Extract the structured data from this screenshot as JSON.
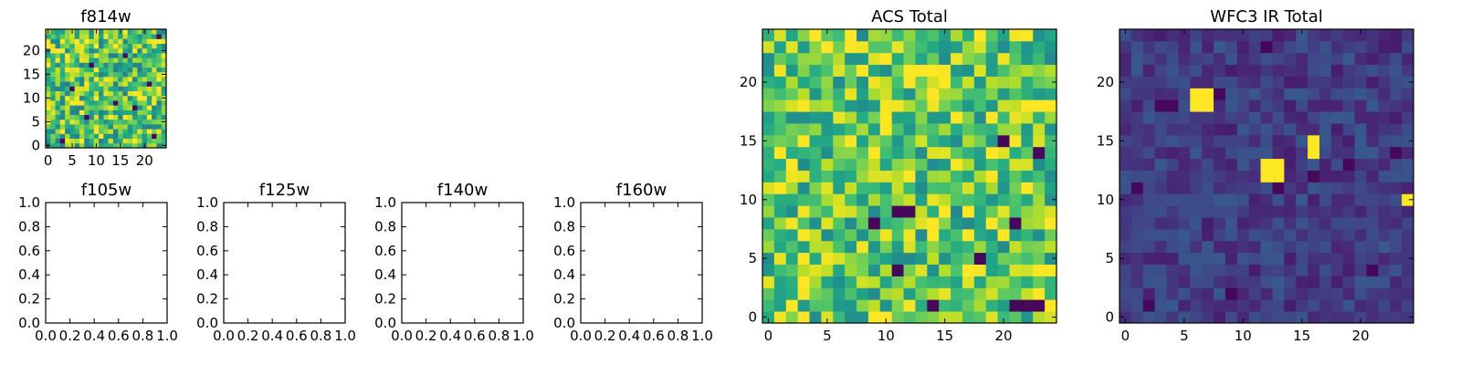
{
  "chart_data": [
    {
      "type": "heatmap",
      "title": "f814w",
      "grid": false,
      "size": 25,
      "colormap": "viridis",
      "extent": [
        -0.5,
        24.5,
        -0.5,
        24.5
      ],
      "xticks": [
        0,
        5,
        10,
        15,
        20
      ],
      "yticks": [
        0,
        5,
        10,
        15,
        20
      ],
      "seed": 11,
      "base": 0.72,
      "noise": 0.3,
      "dark_pixels": [
        [
          3,
          1
        ],
        [
          22,
          2
        ],
        [
          8,
          6
        ],
        [
          14,
          9
        ],
        [
          18,
          8
        ],
        [
          21,
          13
        ],
        [
          9,
          17
        ],
        [
          23,
          23
        ],
        [
          16,
          19
        ],
        [
          5,
          12
        ]
      ],
      "bright_pixels": [],
      "value_range": [
        0,
        1
      ]
    },
    {
      "type": "scatter",
      "title": "f105w",
      "grid": false,
      "empty": true,
      "xlim": [
        0.0,
        1.0
      ],
      "ylim": [
        0.0,
        1.0
      ],
      "xticks": [
        "0.0",
        "0.2",
        "0.4",
        "0.6",
        "0.8",
        "1.0"
      ],
      "yticks": [
        "0.0",
        "0.2",
        "0.4",
        "0.6",
        "0.8",
        "1.0"
      ]
    },
    {
      "type": "scatter",
      "title": "f125w",
      "grid": false,
      "empty": true,
      "xlim": [
        0.0,
        1.0
      ],
      "ylim": [
        0.0,
        1.0
      ],
      "xticks": [
        "0.0",
        "0.2",
        "0.4",
        "0.6",
        "0.8",
        "1.0"
      ],
      "yticks": [
        "0.0",
        "0.2",
        "0.4",
        "0.6",
        "0.8",
        "1.0"
      ]
    },
    {
      "type": "scatter",
      "title": "f140w",
      "grid": false,
      "empty": true,
      "xlim": [
        0.0,
        1.0
      ],
      "ylim": [
        0.0,
        1.0
      ],
      "xticks": [
        "0.0",
        "0.2",
        "0.4",
        "0.6",
        "0.8",
        "1.0"
      ],
      "yticks": [
        "0.0",
        "0.2",
        "0.4",
        "0.6",
        "0.8",
        "1.0"
      ]
    },
    {
      "type": "scatter",
      "title": "f160w",
      "grid": false,
      "empty": true,
      "xlim": [
        0.0,
        1.0
      ],
      "ylim": [
        0.0,
        1.0
      ],
      "xticks": [
        "0.0",
        "0.2",
        "0.4",
        "0.6",
        "0.8",
        "1.0"
      ],
      "yticks": [
        "0.0",
        "0.2",
        "0.4",
        "0.6",
        "0.8",
        "1.0"
      ]
    },
    {
      "type": "heatmap",
      "title": "ACS Total",
      "grid": false,
      "size": 25,
      "colormap": "viridis",
      "extent": [
        -0.5,
        24.5,
        -0.5,
        24.5
      ],
      "xticks": [
        0,
        5,
        10,
        15,
        20
      ],
      "yticks": [
        0,
        5,
        10,
        15,
        20
      ],
      "seed": 7,
      "base": 0.75,
      "noise": 0.28,
      "dark_pixels": [
        [
          11,
          9
        ],
        [
          21,
          1
        ],
        [
          22,
          1
        ],
        [
          23,
          1
        ],
        [
          11,
          4
        ],
        [
          14,
          1
        ],
        [
          18,
          5
        ],
        [
          21,
          8
        ],
        [
          20,
          15
        ],
        [
          23,
          14
        ],
        [
          12,
          9
        ],
        [
          9,
          8
        ]
      ],
      "bright_pixels": [
        [
          13,
          21
        ],
        [
          14,
          21
        ],
        [
          12,
          20
        ],
        [
          8,
          21
        ],
        [
          22,
          11
        ],
        [
          24,
          8
        ]
      ],
      "value_range": [
        0,
        1
      ]
    },
    {
      "type": "heatmap",
      "title": "WFC3 IR Total",
      "grid": false,
      "size": 25,
      "colormap": "viridis",
      "extent": [
        -0.5,
        24.5,
        -0.5,
        24.5
      ],
      "xticks": [
        0,
        5,
        10,
        15,
        20
      ],
      "yticks": [
        0,
        5,
        10,
        15,
        20
      ],
      "seed": 3,
      "base": 0.18,
      "noise": 0.1,
      "dark_pixels": [
        [
          1,
          11
        ],
        [
          3,
          18
        ],
        [
          4,
          18
        ],
        [
          8,
          19
        ],
        [
          13,
          11
        ],
        [
          16,
          12
        ],
        [
          19,
          13
        ],
        [
          23,
          14
        ],
        [
          21,
          4
        ],
        [
          9,
          2
        ],
        [
          12,
          23
        ],
        [
          2,
          1
        ]
      ],
      "bright_pixels": [
        [
          6,
          18
        ],
        [
          7,
          18
        ],
        [
          6,
          19
        ],
        [
          7,
          19
        ],
        [
          12,
          12
        ],
        [
          13,
          12
        ],
        [
          12,
          13
        ],
        [
          13,
          13
        ],
        [
          16,
          14
        ],
        [
          16,
          15
        ],
        [
          24,
          10
        ]
      ],
      "value_range": [
        0,
        1
      ]
    }
  ]
}
